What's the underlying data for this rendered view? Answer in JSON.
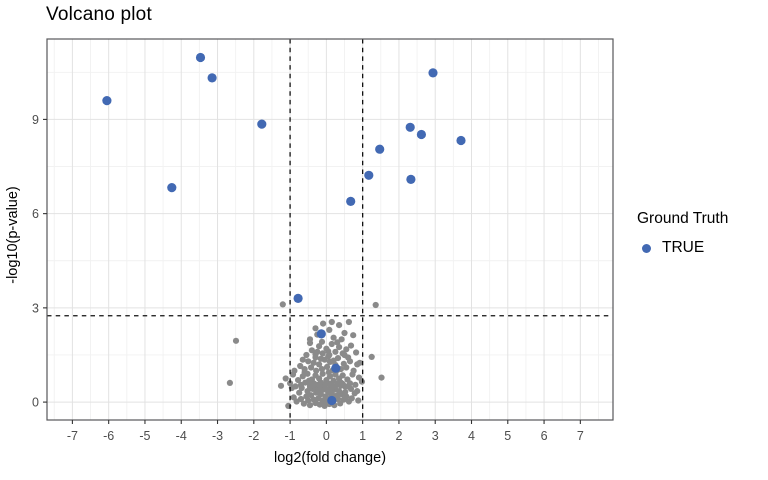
{
  "chart_data": {
    "type": "scatter",
    "title": "Volcano plot",
    "xlabel": "log2(fold change)",
    "ylabel": "-log10(p-value)",
    "xlim": [
      -7.7,
      7.9
    ],
    "ylim": [
      -0.57,
      11.56
    ],
    "x_ticks": [
      -7,
      -6,
      -5,
      -4,
      -3,
      -2,
      -1,
      0,
      1,
      2,
      3,
      4,
      5,
      6,
      7
    ],
    "x_tick_labels": [
      "-7",
      "-6",
      "-5",
      "-4",
      "-3",
      "-2",
      "-1",
      "0",
      "1",
      "2",
      "3",
      "4",
      "5",
      "6",
      "7"
    ],
    "y_ticks": [
      0,
      3,
      6,
      9
    ],
    "y_tick_labels": [
      "0",
      "3",
      "6",
      "9"
    ],
    "x_minor_ticks": [
      -7.5,
      -6.5,
      -5.5,
      -4.5,
      -3.5,
      -2.5,
      -1.5,
      -0.5,
      0.5,
      1.5,
      2.5,
      3.5,
      4.5,
      5.5,
      6.5,
      7.5
    ],
    "y_minor_ticks": [
      1.5,
      4.5,
      7.5,
      10.5
    ],
    "grid": "on",
    "legend": {
      "position": "right",
      "title": "Ground Truth",
      "entries": [
        {
          "label": "TRUE",
          "marker": "circle",
          "color": "#4269B3"
        }
      ]
    },
    "thresholds": {
      "vlines": [
        -1,
        1
      ],
      "hline": 2.75,
      "line_style": "dashed",
      "color": "#111111"
    },
    "style": {
      "panel_background": "#ffffff",
      "panel_border": "#58585A",
      "grid_major": "#E2E2E2",
      "grid_minor": "#F1F1F1",
      "tick_mark": "#333333",
      "tick_label": "#4D4D4D",
      "true_point": "#4269B3",
      "other_point": "#8A8A8A"
    },
    "series": [
      {
        "name": "other",
        "color": "#8A8A8A",
        "marker_radius": 3.1,
        "points": [
          [
            -1.05,
            -0.12
          ],
          [
            -0.82,
            0.02
          ],
          [
            -0.7,
            0.1
          ],
          [
            -0.62,
            -0.05
          ],
          [
            -0.55,
            0.18
          ],
          [
            -0.5,
            0.05
          ],
          [
            -0.45,
            -0.1
          ],
          [
            -0.42,
            0.22
          ],
          [
            -0.35,
            0.08
          ],
          [
            -0.3,
            -0.03
          ],
          [
            -0.28,
            0.3
          ],
          [
            -0.22,
            0.12
          ],
          [
            -0.18,
            -0.08
          ],
          [
            -0.15,
            0.25
          ],
          [
            -0.1,
            0.05
          ],
          [
            -0.05,
            -0.12
          ],
          [
            -0.02,
            0.18
          ],
          [
            0.02,
            0.02
          ],
          [
            0.05,
            0.32
          ],
          [
            0.08,
            -0.06
          ],
          [
            0.12,
            0.15
          ],
          [
            0.15,
            0.28
          ],
          [
            0.2,
            0.04
          ],
          [
            0.22,
            -0.1
          ],
          [
            0.28,
            0.2
          ],
          [
            0.32,
            0.1
          ],
          [
            0.38,
            -0.04
          ],
          [
            0.42,
            0.25
          ],
          [
            0.48,
            0.08
          ],
          [
            0.55,
            0.18
          ],
          [
            0.62,
            0.02
          ],
          [
            0.7,
            0.12
          ],
          [
            0.78,
            0.28
          ],
          [
            0.88,
            0.05
          ],
          [
            -0.9,
            0.15
          ],
          [
            0.35,
            0.35
          ],
          [
            -0.12,
            0.38
          ],
          [
            0.1,
            0.42
          ],
          [
            -0.25,
            0.45
          ],
          [
            0.25,
            0.4
          ],
          [
            -1.25,
            0.52
          ],
          [
            -1.12,
            0.75
          ],
          [
            -1.0,
            0.6
          ],
          [
            -0.92,
            0.88
          ],
          [
            -0.85,
            0.5
          ],
          [
            -0.78,
            0.7
          ],
          [
            -0.7,
            0.55
          ],
          [
            -0.65,
            0.82
          ],
          [
            -0.58,
            0.62
          ],
          [
            -0.52,
            0.9
          ],
          [
            -0.45,
            0.52
          ],
          [
            -0.4,
            0.72
          ],
          [
            -0.35,
            0.6
          ],
          [
            -0.3,
            0.85
          ],
          [
            -0.25,
            0.55
          ],
          [
            -0.2,
            0.75
          ],
          [
            -0.15,
            0.62
          ],
          [
            -0.1,
            0.9
          ],
          [
            -0.05,
            0.5
          ],
          [
            0.0,
            0.7
          ],
          [
            0.05,
            0.58
          ],
          [
            0.1,
            0.82
          ],
          [
            0.15,
            0.52
          ],
          [
            0.2,
            0.68
          ],
          [
            0.25,
            0.88
          ],
          [
            0.3,
            0.55
          ],
          [
            0.35,
            0.75
          ],
          [
            0.4,
            0.62
          ],
          [
            0.45,
            0.85
          ],
          [
            0.52,
            0.5
          ],
          [
            0.58,
            0.72
          ],
          [
            0.65,
            0.6
          ],
          [
            0.72,
            0.88
          ],
          [
            0.8,
            0.55
          ],
          [
            0.9,
            0.78
          ],
          [
            0.98,
            0.65
          ],
          [
            -0.48,
            0.68
          ],
          [
            0.07,
            0.95
          ],
          [
            -0.6,
            0.95
          ],
          [
            0.45,
            0.58
          ],
          [
            -0.88,
            1.0
          ],
          [
            -0.72,
            1.15
          ],
          [
            -0.6,
            1.05
          ],
          [
            -0.5,
            1.3
          ],
          [
            -0.42,
            1.1
          ],
          [
            -0.35,
            1.25
          ],
          [
            -0.28,
            1.0
          ],
          [
            -0.2,
            1.2
          ],
          [
            -0.12,
            1.05
          ],
          [
            -0.05,
            1.35
          ],
          [
            0.02,
            1.12
          ],
          [
            0.1,
            1.28
          ],
          [
            0.18,
            1.02
          ],
          [
            0.25,
            1.18
          ],
          [
            0.32,
            1.4
          ],
          [
            0.4,
            1.05
          ],
          [
            0.48,
            1.22
          ],
          [
            0.55,
            1.1
          ],
          [
            0.65,
            1.3
          ],
          [
            0.75,
            1.0
          ],
          [
            0.85,
            1.2
          ],
          [
            0.92,
            1.25
          ],
          [
            1.25,
            1.44
          ],
          [
            -0.3,
            1.42
          ],
          [
            0.05,
            1.45
          ],
          [
            0.3,
            1.02
          ],
          [
            -0.15,
            1.38
          ],
          [
            0.6,
            1.42
          ],
          [
            -0.65,
            1.35
          ],
          [
            0.2,
            1.32
          ],
          [
            -0.55,
            1.5
          ],
          [
            -0.4,
            1.65
          ],
          [
            -0.3,
            1.52
          ],
          [
            -0.2,
            1.78
          ],
          [
            -0.1,
            1.55
          ],
          [
            0.0,
            1.7
          ],
          [
            0.08,
            1.5
          ],
          [
            0.15,
            1.85
          ],
          [
            0.25,
            1.6
          ],
          [
            0.35,
            1.75
          ],
          [
            0.45,
            1.55
          ],
          [
            0.55,
            1.68
          ],
          [
            0.68,
            1.8
          ],
          [
            0.82,
            1.58
          ],
          [
            -0.12,
            1.92
          ],
          [
            0.3,
            1.9
          ],
          [
            -0.45,
            1.88
          ],
          [
            0.5,
            1.5
          ],
          [
            0.05,
            1.62
          ],
          [
            -0.25,
            1.6
          ],
          [
            -0.45,
            2.0
          ],
          [
            -0.25,
            2.15
          ],
          [
            -0.09,
            2.5
          ],
          [
            0.08,
            2.3
          ],
          [
            0.2,
            2.05
          ],
          [
            0.35,
            2.45
          ],
          [
            0.5,
            2.2
          ],
          [
            0.74,
            2.13
          ],
          [
            0.62,
            2.55
          ],
          [
            -0.3,
            2.35
          ],
          [
            0.15,
            2.55
          ],
          [
            0.42,
            2.0
          ],
          [
            -0.38,
            0.42
          ],
          [
            -0.08,
            0.55
          ],
          [
            0.18,
            0.48
          ],
          [
            -0.52,
            0.35
          ],
          [
            0.52,
            0.32
          ],
          [
            -0.68,
            0.45
          ],
          [
            0.68,
            0.42
          ],
          [
            -0.18,
            0.52
          ],
          [
            0.4,
            0.52
          ],
          [
            -0.02,
            0.4
          ],
          [
            0.3,
            0.58
          ],
          [
            -0.33,
            0.58
          ],
          [
            0.6,
            0.5
          ],
          [
            -0.75,
            0.3
          ],
          [
            0.85,
            0.35
          ],
          [
            -0.95,
            0.45
          ],
          [
            0.02,
            0.62
          ],
          [
            -0.22,
            0.35
          ],
          [
            0.13,
            0.58
          ],
          [
            -0.45,
            0.48
          ],
          [
            -2.49,
            1.95
          ],
          [
            -2.66,
            0.61
          ],
          [
            -1.2,
            3.11
          ],
          [
            1.36,
            3.09
          ],
          [
            1.52,
            0.78
          ]
        ]
      },
      {
        "name": "TRUE",
        "color": "#4269B3",
        "marker_radius": 4.6,
        "points": [
          [
            -6.05,
            9.6
          ],
          [
            -4.26,
            6.83
          ],
          [
            -3.47,
            10.97
          ],
          [
            -3.15,
            10.32
          ],
          [
            -1.78,
            8.85
          ],
          [
            -0.78,
            3.3
          ],
          [
            -0.14,
            2.17
          ],
          [
            0.26,
            1.08
          ],
          [
            0.15,
            0.05
          ],
          [
            0.67,
            6.39
          ],
          [
            1.17,
            7.22
          ],
          [
            1.47,
            8.05
          ],
          [
            2.31,
            8.75
          ],
          [
            2.62,
            8.52
          ],
          [
            2.33,
            7.09
          ],
          [
            2.94,
            10.48
          ],
          [
            3.71,
            8.33
          ]
        ]
      }
    ]
  }
}
